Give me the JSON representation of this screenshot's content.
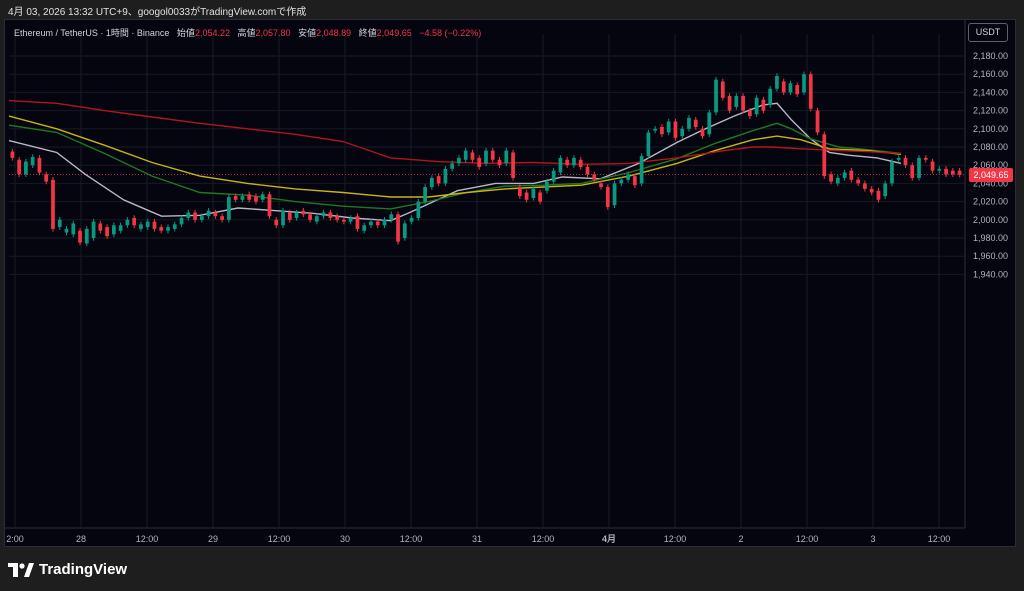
{
  "caption": "4月 03, 2026 13:32 UTC+9、googol0033がTradingView.comで作成",
  "legend": {
    "symbol": "Ethereum / TetherUS · 1時間 · Binance",
    "open_label": "始値",
    "open_value": "2,054.22",
    "high_label": "高値",
    "high_value": "2,057.80",
    "low_label": "安値",
    "low_value": "2,048.89",
    "close_label": "終値",
    "close_value": "2,049.65",
    "change": "−4.58 (−0.22%)"
  },
  "currency_button": "USDT",
  "last_price_label": "2,049.65",
  "logo_text": "TradingView",
  "colors": {
    "up": "#089981",
    "down": "#f23645",
    "ma_fast": "#b8b8c8",
    "ma_mid": "#1f7a1f",
    "ma_slow": "#c7b412",
    "ma_long": "#b3141c"
  },
  "chart_data": {
    "type": "candlestick",
    "y_ticks": [
      "2,180.00",
      "2,160.00",
      "2,140.00",
      "2,120.00",
      "2,100.00",
      "2,080.00",
      "2,060.00",
      "2,040.00",
      "2,020.00",
      "2,000.00",
      "1,980.00",
      "1,960.00",
      "1,940.00"
    ],
    "x_ticks": [
      "2:00",
      "28",
      "12:00",
      "29",
      "12:00",
      "30",
      "12:00",
      "31",
      "12:00",
      "4月",
      "12:00",
      "2",
      "12:00",
      "3",
      "12:00"
    ],
    "ylim": [
      1928,
      2192
    ],
    "last_price": 2049.65,
    "series": [
      {
        "name": "",
        "type": "ma",
        "color": "#b8b8c8",
        "points": [
          [
            0,
            2087
          ],
          [
            0.05,
            2074
          ],
          [
            0.08,
            2050
          ],
          [
            0.12,
            2022
          ],
          [
            0.16,
            2004
          ],
          [
            0.2,
            2005
          ],
          [
            0.24,
            2013
          ],
          [
            0.28,
            2010
          ],
          [
            0.32,
            2007
          ],
          [
            0.36,
            2002
          ],
          [
            0.4,
            1999
          ],
          [
            0.42,
            2008
          ],
          [
            0.47,
            2032
          ],
          [
            0.51,
            2040
          ],
          [
            0.55,
            2040
          ],
          [
            0.58,
            2047
          ],
          [
            0.62,
            2045
          ],
          [
            0.66,
            2062
          ],
          [
            0.7,
            2085
          ],
          [
            0.73,
            2100
          ],
          [
            0.76,
            2114
          ],
          [
            0.79,
            2126
          ],
          [
            0.805,
            2128
          ],
          [
            0.82,
            2110
          ],
          [
            0.84,
            2089
          ],
          [
            0.86,
            2074
          ],
          [
            0.88,
            2071
          ],
          [
            0.91,
            2068
          ],
          [
            0.935,
            2062
          ]
        ]
      },
      {
        "name": "",
        "type": "ma",
        "color": "#1f7a1f",
        "points": [
          [
            0,
            2104
          ],
          [
            0.05,
            2096
          ],
          [
            0.1,
            2073
          ],
          [
            0.15,
            2048
          ],
          [
            0.2,
            2030
          ],
          [
            0.25,
            2027
          ],
          [
            0.3,
            2020
          ],
          [
            0.35,
            2015
          ],
          [
            0.4,
            2012
          ],
          [
            0.44,
            2020
          ],
          [
            0.48,
            2030
          ],
          [
            0.52,
            2037
          ],
          [
            0.56,
            2038
          ],
          [
            0.6,
            2040
          ],
          [
            0.65,
            2052
          ],
          [
            0.7,
            2067
          ],
          [
            0.74,
            2084
          ],
          [
            0.78,
            2098
          ],
          [
            0.805,
            2106
          ],
          [
            0.82,
            2100
          ],
          [
            0.84,
            2089
          ],
          [
            0.87,
            2080
          ],
          [
            0.9,
            2077
          ],
          [
            0.935,
            2073
          ]
        ]
      },
      {
        "name": "",
        "type": "ma",
        "color": "#c7b412",
        "points": [
          [
            0,
            2114
          ],
          [
            0.05,
            2100
          ],
          [
            0.1,
            2082
          ],
          [
            0.15,
            2063
          ],
          [
            0.2,
            2048
          ],
          [
            0.25,
            2040
          ],
          [
            0.3,
            2034
          ],
          [
            0.35,
            2030
          ],
          [
            0.4,
            2025
          ],
          [
            0.44,
            2025
          ],
          [
            0.48,
            2030
          ],
          [
            0.52,
            2034
          ],
          [
            0.56,
            2036
          ],
          [
            0.6,
            2038
          ],
          [
            0.65,
            2048
          ],
          [
            0.7,
            2062
          ],
          [
            0.74,
            2076
          ],
          [
            0.78,
            2088
          ],
          [
            0.805,
            2092
          ],
          [
            0.83,
            2088
          ],
          [
            0.86,
            2078
          ],
          [
            0.9,
            2076
          ],
          [
            0.935,
            2072
          ]
        ]
      },
      {
        "name": "",
        "type": "ma",
        "color": "#b3141c",
        "points": [
          [
            0,
            2131
          ],
          [
            0.05,
            2128
          ],
          [
            0.1,
            2120
          ],
          [
            0.15,
            2113
          ],
          [
            0.2,
            2106
          ],
          [
            0.25,
            2100
          ],
          [
            0.3,
            2094
          ],
          [
            0.35,
            2086
          ],
          [
            0.4,
            2068
          ],
          [
            0.45,
            2064
          ],
          [
            0.5,
            2062
          ],
          [
            0.55,
            2063
          ],
          [
            0.6,
            2061
          ],
          [
            0.65,
            2062
          ],
          [
            0.7,
            2068
          ],
          [
            0.75,
            2076
          ],
          [
            0.78,
            2080
          ],
          [
            0.8,
            2080
          ],
          [
            0.83,
            2078
          ],
          [
            0.87,
            2076
          ],
          [
            0.9,
            2075
          ],
          [
            0.935,
            2073
          ]
        ]
      }
    ],
    "candles": [
      [
        2075,
        2068
      ],
      [
        2066,
        2050
      ],
      [
        2050,
        2064
      ],
      [
        2060,
        2069
      ],
      [
        2068,
        2052
      ],
      [
        2050,
        2042
      ],
      [
        2044,
        1990
      ],
      [
        1992,
        2000
      ],
      [
        1986,
        1990
      ],
      [
        1984,
        1996
      ],
      [
        1988,
        1975
      ],
      [
        1974,
        1990
      ],
      [
        1980,
        1998
      ],
      [
        1996,
        1988
      ],
      [
        1992,
        1982
      ],
      [
        1984,
        1994
      ],
      [
        1988,
        1994
      ],
      [
        1994,
        2000
      ],
      [
        2002,
        1994
      ],
      [
        1990,
        1995
      ],
      [
        1992,
        1998
      ],
      [
        1998,
        1990
      ],
      [
        1992,
        1988
      ],
      [
        1988,
        1992
      ],
      [
        1990,
        1995
      ],
      [
        1995,
        2002
      ],
      [
        2002,
        2008
      ],
      [
        2008,
        2000
      ],
      [
        2000,
        2004
      ],
      [
        2004,
        2010
      ],
      [
        2008,
        2004
      ],
      [
        2004,
        2000
      ],
      [
        2000,
        2025
      ],
      [
        2026,
        2022
      ],
      [
        2022,
        2026
      ],
      [
        2028,
        2022
      ],
      [
        2026,
        2020
      ],
      [
        2022,
        2028
      ],
      [
        2028,
        2004
      ],
      [
        2000,
        1994
      ],
      [
        1994,
        2010
      ],
      [
        2008,
        2000
      ],
      [
        2002,
        2008
      ],
      [
        2010,
        2006
      ],
      [
        2006,
        2000
      ],
      [
        1998,
        2004
      ],
      [
        2004,
        2008
      ],
      [
        2008,
        2002
      ],
      [
        2004,
        2000
      ],
      [
        2000,
        1998
      ],
      [
        1998,
        2002
      ],
      [
        2004,
        1990
      ],
      [
        1988,
        1994
      ],
      [
        1994,
        1998
      ],
      [
        1998,
        1994
      ],
      [
        1994,
        2000
      ],
      [
        2000,
        2006
      ],
      [
        2006,
        1976
      ],
      [
        1980,
        1996
      ],
      [
        1998,
        2002
      ],
      [
        2002,
        2020
      ],
      [
        2020,
        2036
      ],
      [
        2036,
        2046
      ],
      [
        2048,
        2040
      ],
      [
        2040,
        2056
      ],
      [
        2056,
        2062
      ],
      [
        2062,
        2068
      ],
      [
        2066,
        2076
      ],
      [
        2074,
        2066
      ],
      [
        2068,
        2058
      ],
      [
        2062,
        2076
      ],
      [
        2076,
        2066
      ],
      [
        2066,
        2060
      ],
      [
        2062,
        2076
      ],
      [
        2074,
        2046
      ],
      [
        2036,
        2026
      ],
      [
        2030,
        2022
      ],
      [
        2024,
        2034
      ],
      [
        2030,
        2020
      ],
      [
        2032,
        2042
      ],
      [
        2042,
        2054
      ],
      [
        2052,
        2068
      ],
      [
        2066,
        2060
      ],
      [
        2060,
        2068
      ],
      [
        2066,
        2058
      ],
      [
        2058,
        2050
      ],
      [
        2050,
        2044
      ],
      [
        2040,
        2036
      ],
      [
        2036,
        2014
      ],
      [
        2016,
        2040
      ],
      [
        2040,
        2044
      ],
      [
        2044,
        2050
      ],
      [
        2048,
        2038
      ],
      [
        2040,
        2070
      ],
      [
        2070,
        2096
      ],
      [
        2098,
        2100
      ],
      [
        2102,
        2094
      ],
      [
        2096,
        2108
      ],
      [
        2108,
        2090
      ],
      [
        2092,
        2100
      ],
      [
        2100,
        2112
      ],
      [
        2110,
        2102
      ],
      [
        2100,
        2092
      ],
      [
        2094,
        2118
      ],
      [
        2118,
        2154
      ],
      [
        2152,
        2134
      ],
      [
        2136,
        2120
      ],
      [
        2124,
        2136
      ],
      [
        2136,
        2120
      ],
      [
        2120,
        2114
      ],
      [
        2116,
        2134
      ],
      [
        2132,
        2120
      ],
      [
        2126,
        2144
      ],
      [
        2144,
        2158
      ],
      [
        2152,
        2140
      ],
      [
        2140,
        2150
      ],
      [
        2148,
        2138
      ],
      [
        2140,
        2160
      ],
      [
        2160,
        2122
      ],
      [
        2120,
        2096
      ],
      [
        2094,
        2048
      ],
      [
        2050,
        2042
      ],
      [
        2040,
        2046
      ],
      [
        2046,
        2052
      ],
      [
        2054,
        2044
      ],
      [
        2044,
        2040
      ],
      [
        2040,
        2034
      ],
      [
        2034,
        2030
      ],
      [
        2032,
        2022
      ],
      [
        2026,
        2040
      ],
      [
        2040,
        2064
      ],
      [
        2066,
        2068
      ],
      [
        2068,
        2060
      ],
      [
        2060,
        2046
      ],
      [
        2046,
        2068
      ],
      [
        2068,
        2066
      ],
      [
        2064,
        2054
      ],
      [
        2054,
        2056
      ],
      [
        2056,
        2050
      ],
      [
        2054,
        2050
      ],
      [
        2054,
        2049.65
      ]
    ]
  }
}
